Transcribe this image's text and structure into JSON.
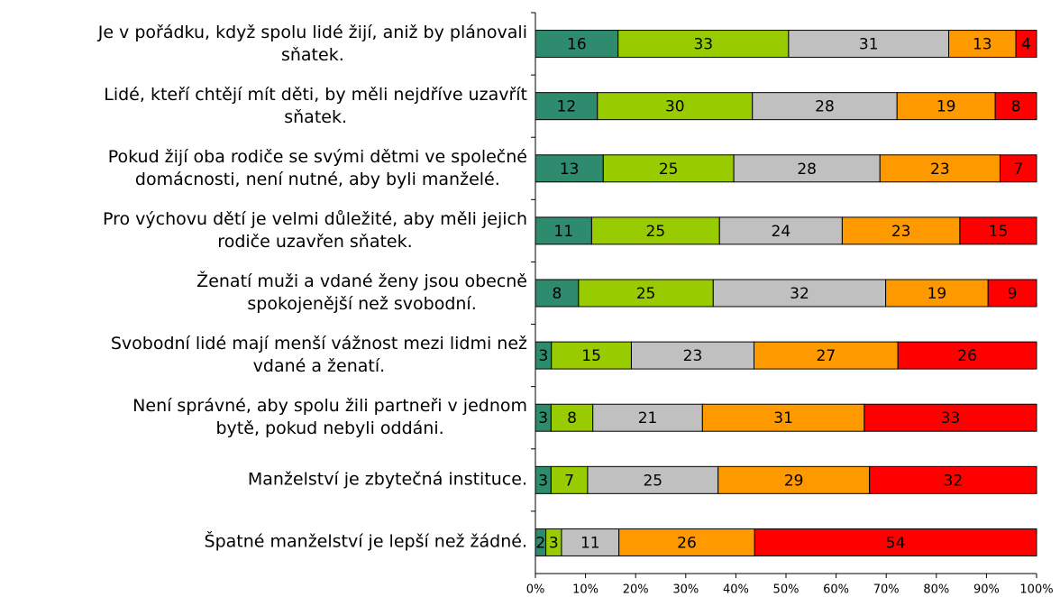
{
  "chart_data": {
    "type": "bar",
    "orientation": "horizontal",
    "stacking": "percent",
    "categories": [
      "Je v pořádku, když spolu lidé žijí, aniž by plánovali\nsňatek.",
      "Lidé, kteří chtějí mít děti, by měli nejdříve uzavřít\nsňatek.",
      "Pokud žijí oba rodiče se svými dětmi ve společné\ndomácnosti, není nutné, aby byli manželé.",
      "Pro výchovu dětí je velmi důležité, aby měli jejich\nrodiče uzavřen sňatek.",
      "Ženatí muži a vdané ženy jsou obecně\nspokojenější než svobodní.",
      "Svobodní lidé mají menší vážnost mezi lidmi než\nvdané a ženatí.",
      "Není správné, aby spolu žili partneři v jednom\nbytě, pokud nebyli oddáni.",
      "Manželství je zbytečná instituce.",
      "Špatné manželství je lepší než žádné."
    ],
    "series": [
      {
        "color": "#2e8b6e",
        "values": [
          16,
          12,
          13,
          11,
          8,
          3,
          3,
          3,
          2
        ]
      },
      {
        "color": "#99cc00",
        "values": [
          33,
          30,
          25,
          25,
          25,
          15,
          8,
          7,
          3
        ]
      },
      {
        "color": "#c0c0c0",
        "values": [
          31,
          28,
          28,
          24,
          32,
          23,
          21,
          25,
          11
        ]
      },
      {
        "color": "#ff9900",
        "values": [
          13,
          19,
          23,
          23,
          19,
          27,
          31,
          29,
          26
        ]
      },
      {
        "color": "#ff0000",
        "values": [
          4,
          8,
          7,
          15,
          9,
          26,
          33,
          32,
          54
        ]
      }
    ],
    "xlim": [
      0,
      100
    ],
    "xticks": [
      {
        "value": 0,
        "label": "0%"
      },
      {
        "value": 10,
        "label": "10%"
      },
      {
        "value": 20,
        "label": "20%"
      },
      {
        "value": 30,
        "label": "30%"
      },
      {
        "value": 40,
        "label": "40%"
      },
      {
        "value": 50,
        "label": "50%"
      },
      {
        "value": 60,
        "label": "60%"
      },
      {
        "value": 70,
        "label": "70%"
      },
      {
        "value": 80,
        "label": "80%"
      },
      {
        "value": 90,
        "label": "90%"
      },
      {
        "value": 100,
        "label": "100%"
      }
    ],
    "grid": false
  }
}
